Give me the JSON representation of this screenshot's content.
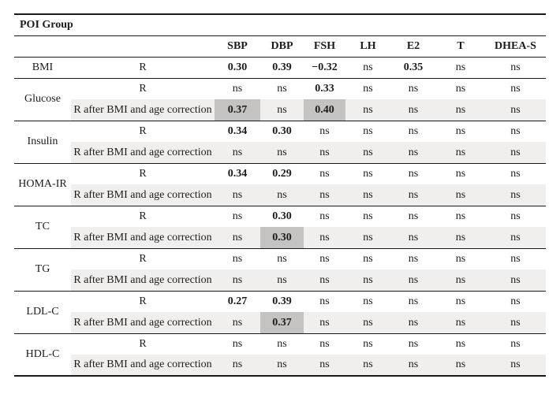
{
  "table": {
    "group_title": "POI Group",
    "value_columns": [
      "SBP",
      "DBP",
      "FSH",
      "LH",
      "E2",
      "T",
      "DHEA-S"
    ],
    "not_significant_label": "ns",
    "row_labels": {
      "r": "R",
      "r_corrected": "R after BMI and age correction"
    },
    "colors": {
      "rule": "#1a1a1a",
      "shaded_row": "#f0efed",
      "highlighted_cell": "#c5c3c1"
    },
    "groups": [
      {
        "label": "BMI",
        "rows": [
          {
            "label": "R",
            "shaded": false,
            "values": [
              "0.30",
              "0.39",
              "−0.32",
              "ns",
              "0.35",
              "ns",
              "ns"
            ],
            "highlighted_columns": []
          }
        ]
      },
      {
        "label": "Glucose",
        "rows": [
          {
            "label": "R",
            "shaded": false,
            "values": [
              "ns",
              "ns",
              "0.33",
              "ns",
              "ns",
              "ns",
              "ns"
            ],
            "highlighted_columns": []
          },
          {
            "label": "R after BMI and age correction",
            "shaded": true,
            "values": [
              "0.37",
              "ns",
              "0.40",
              "ns",
              "ns",
              "ns",
              "ns"
            ],
            "highlighted_columns": [
              "SBP",
              "FSH"
            ]
          }
        ]
      },
      {
        "label": "Insulin",
        "rows": [
          {
            "label": "R",
            "shaded": false,
            "values": [
              "0.34",
              "0.30",
              "ns",
              "ns",
              "ns",
              "ns",
              "ns"
            ],
            "highlighted_columns": []
          },
          {
            "label": "R after BMI and age correction",
            "shaded": true,
            "values": [
              "ns",
              "ns",
              "ns",
              "ns",
              "ns",
              "ns",
              "ns"
            ],
            "highlighted_columns": []
          }
        ]
      },
      {
        "label": "HOMA-IR",
        "rows": [
          {
            "label": "R",
            "shaded": false,
            "values": [
              "0.34",
              "0.29",
              "ns",
              "ns",
              "ns",
              "ns",
              "ns"
            ],
            "highlighted_columns": []
          },
          {
            "label": "R after BMI and age correction",
            "shaded": true,
            "values": [
              "ns",
              "ns",
              "ns",
              "ns",
              "ns",
              "ns",
              "ns"
            ],
            "highlighted_columns": []
          }
        ]
      },
      {
        "label": "TC",
        "rows": [
          {
            "label": "R",
            "shaded": false,
            "values": [
              "ns",
              "0.30",
              "ns",
              "ns",
              "ns",
              "ns",
              "ns"
            ],
            "highlighted_columns": []
          },
          {
            "label": "R after BMI and age correction",
            "shaded": true,
            "values": [
              "ns",
              "0.30",
              "ns",
              "ns",
              "ns",
              "ns",
              "ns"
            ],
            "highlighted_columns": [
              "DBP"
            ]
          }
        ]
      },
      {
        "label": "TG",
        "rows": [
          {
            "label": "R",
            "shaded": false,
            "values": [
              "ns",
              "ns",
              "ns",
              "ns",
              "ns",
              "ns",
              "ns"
            ],
            "highlighted_columns": []
          },
          {
            "label": "R after BMI and age correction",
            "shaded": true,
            "values": [
              "ns",
              "ns",
              "ns",
              "ns",
              "ns",
              "ns",
              "ns"
            ],
            "highlighted_columns": []
          }
        ]
      },
      {
        "label": "LDL-C",
        "rows": [
          {
            "label": "R",
            "shaded": false,
            "values": [
              "0.27",
              "0.39",
              "ns",
              "ns",
              "ns",
              "ns",
              "ns"
            ],
            "highlighted_columns": []
          },
          {
            "label": "R after BMI and age correction",
            "shaded": true,
            "values": [
              "ns",
              "0.37",
              "ns",
              "ns",
              "ns",
              "ns",
              "ns"
            ],
            "highlighted_columns": [
              "DBP"
            ]
          }
        ]
      },
      {
        "label": "HDL-C",
        "rows": [
          {
            "label": "R",
            "shaded": false,
            "values": [
              "ns",
              "ns",
              "ns",
              "ns",
              "ns",
              "ns",
              "ns"
            ],
            "highlighted_columns": []
          },
          {
            "label": "R after BMI and age correction",
            "shaded": true,
            "values": [
              "ns",
              "ns",
              "ns",
              "ns",
              "ns",
              "ns",
              "ns"
            ],
            "highlighted_columns": []
          }
        ]
      }
    ]
  }
}
